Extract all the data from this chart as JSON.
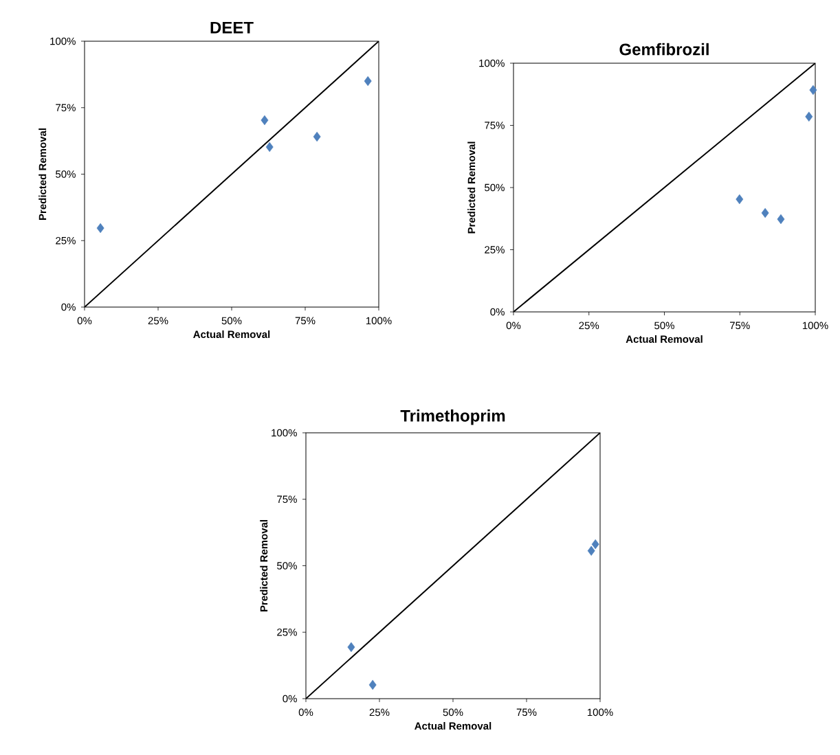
{
  "chart_data": [
    {
      "type": "scatter",
      "title": "DEET",
      "xlabel": "Actual Removal",
      "ylabel": "Predicted Removal",
      "xlim": [
        0,
        100
      ],
      "ylim": [
        0,
        100
      ],
      "xticks": [
        {
          "value": 0,
          "label": "0%"
        },
        {
          "value": 25,
          "label": "25%"
        },
        {
          "value": 50,
          "label": "50%"
        },
        {
          "value": 75,
          "label": "75%"
        },
        {
          "value": 100,
          "label": "100%"
        }
      ],
      "yticks": [
        {
          "value": 0,
          "label": "0%"
        },
        {
          "value": 25,
          "label": "25%"
        },
        {
          "value": 50,
          "label": "50%"
        },
        {
          "value": 75,
          "label": "75%"
        },
        {
          "value": 100,
          "label": "100%"
        }
      ],
      "series": [
        {
          "color": "#4f81bd",
          "marker": "diamond",
          "x": [
            5.4,
            61.2,
            62.9,
            79.0,
            96.3
          ],
          "values": [
            29.7,
            70.3,
            60.2,
            64.1,
            85.0
          ]
        },
        {
          "type": "line",
          "color": "#000000",
          "marker": "none",
          "line_style": "solid",
          "x": [
            0,
            100
          ],
          "values": [
            0,
            100
          ]
        }
      ]
    },
    {
      "type": "scatter",
      "title": "Gemfibrozil",
      "xlabel": "Actual Removal",
      "ylabel": "Predicted Removal",
      "xlim": [
        0,
        100
      ],
      "ylim": [
        0,
        100
      ],
      "xticks": [
        {
          "value": 0,
          "label": "0%"
        },
        {
          "value": 25,
          "label": "25%"
        },
        {
          "value": 50,
          "label": "50%"
        },
        {
          "value": 75,
          "label": "75%"
        },
        {
          "value": 100,
          "label": "100%"
        }
      ],
      "yticks": [
        {
          "value": 0,
          "label": "0%"
        },
        {
          "value": 25,
          "label": "25%"
        },
        {
          "value": 50,
          "label": "50%"
        },
        {
          "value": 75,
          "label": "75%"
        },
        {
          "value": 100,
          "label": "100%"
        }
      ],
      "series": [
        {
          "color": "#4f81bd",
          "marker": "diamond",
          "x": [
            99.3,
            97.9,
            74.9,
            83.4,
            88.6
          ],
          "values": [
            89.2,
            78.5,
            45.3,
            39.8,
            37.3
          ]
        },
        {
          "type": "line",
          "color": "#000000",
          "marker": "none",
          "line_style": "solid",
          "x": [
            0,
            100
          ],
          "values": [
            0,
            100
          ]
        }
      ]
    },
    {
      "type": "scatter",
      "title": "Trimethoprim",
      "xlabel": "Actual Removal",
      "ylabel": "Predicted Removal",
      "xlim": [
        0,
        100
      ],
      "ylim": [
        0,
        100
      ],
      "xticks": [
        {
          "value": 0,
          "label": "0%"
        },
        {
          "value": 25,
          "label": "25%"
        },
        {
          "value": 50,
          "label": "50%"
        },
        {
          "value": 75,
          "label": "75%"
        },
        {
          "value": 100,
          "label": "100%"
        }
      ],
      "yticks": [
        {
          "value": 0,
          "label": "0%"
        },
        {
          "value": 25,
          "label": "25%"
        },
        {
          "value": 50,
          "label": "50%"
        },
        {
          "value": 75,
          "label": "75%"
        },
        {
          "value": 100,
          "label": "100%"
        }
      ],
      "series": [
        {
          "color": "#4f81bd",
          "marker": "diamond",
          "x": [
            15.4,
            22.7,
            97.0,
            98.4
          ],
          "values": [
            19.4,
            5.2,
            55.6,
            58.1
          ]
        },
        {
          "type": "line",
          "color": "#000000",
          "marker": "none",
          "line_style": "solid",
          "x": [
            0,
            100
          ],
          "values": [
            0,
            100
          ]
        }
      ]
    }
  ]
}
